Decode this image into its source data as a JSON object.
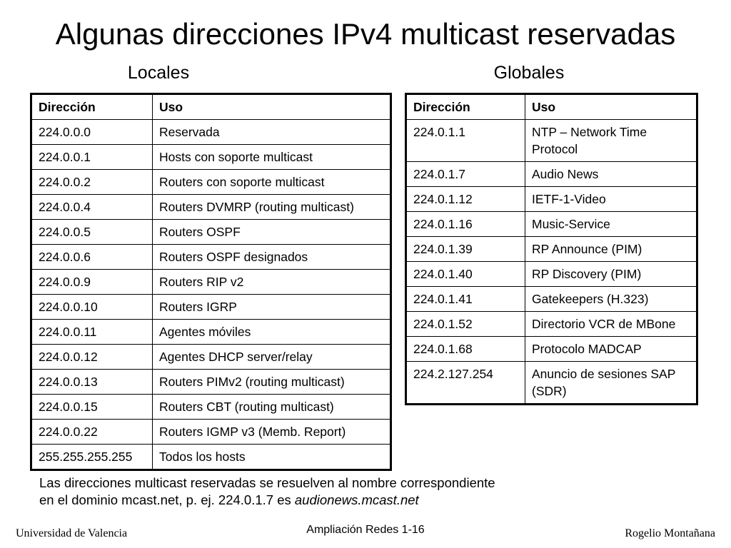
{
  "title": "Algunas direcciones IPv4 multicast reservadas",
  "locales": {
    "heading": "Locales",
    "header": {
      "address": "Dirección",
      "use": "Uso"
    },
    "rows": [
      {
        "address": "224.0.0.0",
        "use": "Reservada"
      },
      {
        "address": "224.0.0.1",
        "use": "Hosts con soporte multicast"
      },
      {
        "address": "224.0.0.2",
        "use": "Routers con soporte multicast"
      },
      {
        "address": "224.0.0.4",
        "use": "Routers DVMRP (routing multicast)"
      },
      {
        "address": "224.0.0.5",
        "use": "Routers OSPF"
      },
      {
        "address": "224.0.0.6",
        "use": "Routers OSPF designados"
      },
      {
        "address": "224.0.0.9",
        "use": "Routers RIP v2"
      },
      {
        "address": "224.0.0.10",
        "use": "Routers IGRP"
      },
      {
        "address": "224.0.0.11",
        "use": "Agentes móviles"
      },
      {
        "address": "224.0.0.12",
        "use": "Agentes DHCP server/relay"
      },
      {
        "address": "224.0.0.13",
        "use": "Routers PIMv2 (routing multicast)"
      },
      {
        "address": "224.0.0.15",
        "use": "Routers CBT (routing multicast)"
      },
      {
        "address": "224.0.0.22",
        "use": "Routers IGMP v3 (Memb. Report)"
      },
      {
        "address": "255.255.255.255",
        "use": "Todos los hosts"
      }
    ]
  },
  "globales": {
    "heading": "Globales",
    "header": {
      "address": "Dirección",
      "use": "Uso"
    },
    "rows": [
      {
        "address": "224.0.1.1",
        "use": "NTP – Network Time Protocol"
      },
      {
        "address": "224.0.1.7",
        "use": "Audio News"
      },
      {
        "address": "224.0.1.12",
        "use": "IETF-1-Video"
      },
      {
        "address": "224.0.1.16",
        "use": "Music-Service"
      },
      {
        "address": "224.0.1.39",
        "use": "RP Announce (PIM)"
      },
      {
        "address": "224.0.1.40",
        "use": "RP Discovery (PIM)"
      },
      {
        "address": "224.0.1.41",
        "use": "Gatekeepers (H.323)"
      },
      {
        "address": "224.0.1.52",
        "use": "Directorio VCR de MBone"
      },
      {
        "address": "224.0.1.68",
        "use": "Protocolo MADCAP"
      },
      {
        "address": "224.2.127.254",
        "use": "Anuncio de sesiones SAP (SDR)"
      }
    ]
  },
  "note": {
    "line1": "Las direcciones multicast reservadas se resuelven al nombre correspondiente",
    "line2_prefix": "en el dominio mcast.net, p. ej. 224.0.1.7 es ",
    "line2_italic": "audionews.mcast.net"
  },
  "footer": {
    "left": "Universidad de Valencia",
    "center": "Ampliación Redes 1-16",
    "right": "Rogelio Montañana"
  }
}
